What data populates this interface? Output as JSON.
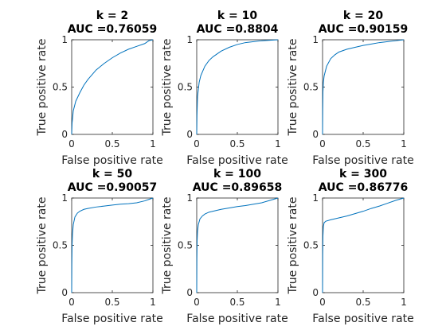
{
  "chart_data": [
    {
      "type": "line",
      "title_lines": [
        "k = 2",
        "AUC =0.76059"
      ],
      "xlabel": "False positive rate",
      "ylabel": "True positive rate",
      "xlim": [
        0,
        1
      ],
      "ylim": [
        0,
        1
      ],
      "xticks": [
        0,
        0.5,
        1
      ],
      "xtick_labels": [
        "0",
        "0.5",
        "1"
      ],
      "yticks": [
        0,
        0.5,
        1
      ],
      "ytick_labels": [
        "0",
        "0.5",
        "1"
      ],
      "grid": false,
      "series": [
        {
          "color": "#0072bd",
          "x": [
            0,
            0.005,
            0.02,
            0.05,
            0.1,
            0.15,
            0.2,
            0.3,
            0.4,
            0.5,
            0.6,
            0.7,
            0.8,
            0.9,
            0.95,
            1
          ],
          "y": [
            0,
            0.12,
            0.25,
            0.35,
            0.44,
            0.52,
            0.58,
            0.68,
            0.75,
            0.81,
            0.86,
            0.9,
            0.93,
            0.96,
            0.99,
            1
          ]
        }
      ]
    },
    {
      "type": "line",
      "title_lines": [
        "k = 10",
        "AUC =0.8804"
      ],
      "xlabel": "False positive rate",
      "ylabel": "True positive rate",
      "xlim": [
        0,
        1
      ],
      "ylim": [
        0,
        1
      ],
      "xticks": [
        0,
        0.5,
        1
      ],
      "xtick_labels": [
        "0",
        "0.5",
        "1"
      ],
      "yticks": [
        0,
        0.5,
        1
      ],
      "ytick_labels": [
        "0",
        "0.5",
        "1"
      ],
      "grid": false,
      "series": [
        {
          "color": "#0072bd",
          "x": [
            0,
            0.003,
            0.01,
            0.03,
            0.05,
            0.1,
            0.15,
            0.2,
            0.3,
            0.4,
            0.5,
            0.6,
            0.7,
            0.8,
            0.9,
            1
          ],
          "y": [
            0,
            0.2,
            0.4,
            0.55,
            0.62,
            0.72,
            0.78,
            0.82,
            0.88,
            0.92,
            0.95,
            0.97,
            0.98,
            0.99,
            0.995,
            1
          ]
        }
      ]
    },
    {
      "type": "line",
      "title_lines": [
        "k = 20",
        "AUC =0.90159"
      ],
      "xlabel": "False positive rate",
      "ylabel": "True positive rate",
      "xlim": [
        0,
        1
      ],
      "ylim": [
        0,
        1
      ],
      "xticks": [
        0,
        0.5,
        1
      ],
      "xtick_labels": [
        "0",
        "0.5",
        "1"
      ],
      "yticks": [
        0,
        0.5,
        1
      ],
      "ytick_labels": [
        "0",
        "0.5",
        "1"
      ],
      "grid": false,
      "series": [
        {
          "color": "#0072bd",
          "x": [
            0,
            0.002,
            0.005,
            0.01,
            0.02,
            0.05,
            0.1,
            0.15,
            0.2,
            0.3,
            0.4,
            0.5,
            0.6,
            0.7,
            0.8,
            0.9,
            1
          ],
          "y": [
            0,
            0.25,
            0.45,
            0.55,
            0.62,
            0.72,
            0.8,
            0.84,
            0.87,
            0.9,
            0.92,
            0.94,
            0.955,
            0.97,
            0.98,
            0.99,
            1
          ]
        }
      ]
    },
    {
      "type": "line",
      "title_lines": [
        "k = 50",
        "AUC =0.90057"
      ],
      "xlabel": "False positive rate",
      "ylabel": "True positive rate",
      "xlim": [
        0,
        1
      ],
      "ylim": [
        0,
        1
      ],
      "xticks": [
        0,
        0.5,
        1
      ],
      "xtick_labels": [
        "0",
        "0.5",
        "1"
      ],
      "yticks": [
        0,
        0.5,
        1
      ],
      "ytick_labels": [
        "0",
        "0.5",
        "1"
      ],
      "grid": false,
      "series": [
        {
          "color": "#0072bd",
          "x": [
            0,
            0.002,
            0.005,
            0.01,
            0.02,
            0.04,
            0.07,
            0.1,
            0.15,
            0.2,
            0.3,
            0.4,
            0.5,
            0.6,
            0.7,
            0.8,
            0.9,
            0.95,
            1
          ],
          "y": [
            0,
            0.3,
            0.5,
            0.62,
            0.72,
            0.8,
            0.84,
            0.86,
            0.88,
            0.89,
            0.905,
            0.915,
            0.925,
            0.935,
            0.94,
            0.95,
            0.97,
            0.985,
            1
          ]
        }
      ]
    },
    {
      "type": "line",
      "title_lines": [
        "k = 100",
        "AUC =0.89658"
      ],
      "xlabel": "False positive rate",
      "ylabel": "True positive rate",
      "xlim": [
        0,
        1
      ],
      "ylim": [
        0,
        1
      ],
      "xticks": [
        0,
        0.5,
        1
      ],
      "xtick_labels": [
        "0",
        "0.5",
        "1"
      ],
      "yticks": [
        0,
        0.5,
        1
      ],
      "ytick_labels": [
        "0",
        "0.5",
        "1"
      ],
      "grid": false,
      "series": [
        {
          "color": "#0072bd",
          "x": [
            0,
            0.002,
            0.005,
            0.01,
            0.02,
            0.04,
            0.07,
            0.1,
            0.15,
            0.2,
            0.3,
            0.4,
            0.5,
            0.6,
            0.7,
            0.8,
            0.9,
            1
          ],
          "y": [
            0,
            0.35,
            0.55,
            0.65,
            0.72,
            0.78,
            0.81,
            0.83,
            0.85,
            0.86,
            0.88,
            0.895,
            0.91,
            0.92,
            0.935,
            0.95,
            0.975,
            1
          ]
        }
      ]
    },
    {
      "type": "line",
      "title_lines": [
        "k = 300",
        "AUC =0.86776"
      ],
      "xlabel": "False positive rate",
      "ylabel": "True positive rate",
      "xlim": [
        0,
        1
      ],
      "ylim": [
        0,
        1
      ],
      "xticks": [
        0,
        0.5,
        1
      ],
      "xtick_labels": [
        "0",
        "0.5",
        "1"
      ],
      "yticks": [
        0,
        0.5,
        1
      ],
      "ytick_labels": [
        "0",
        "0.5",
        "1"
      ],
      "grid": false,
      "series": [
        {
          "color": "#0072bd",
          "x": [
            0,
            0.002,
            0.005,
            0.01,
            0.02,
            0.04,
            0.1,
            0.2,
            0.3,
            0.4,
            0.5,
            0.6,
            0.7,
            0.8,
            0.9,
            1
          ],
          "y": [
            0,
            0.4,
            0.6,
            0.7,
            0.74,
            0.755,
            0.77,
            0.79,
            0.81,
            0.835,
            0.86,
            0.89,
            0.915,
            0.945,
            0.975,
            1
          ]
        }
      ]
    }
  ]
}
